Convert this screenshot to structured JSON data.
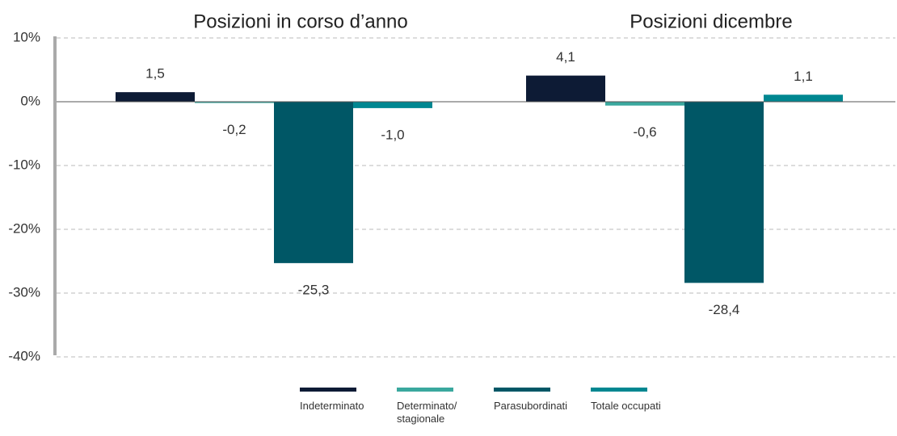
{
  "chart_data": {
    "type": "bar",
    "categories": [
      "Posizioni in corso d’anno",
      "Posizioni dicembre"
    ],
    "series": [
      {
        "name": "Indeterminato",
        "color": "#0d1b35",
        "values": [
          1.5,
          4.1
        ],
        "value_labels": [
          "1,5",
          "4,1"
        ]
      },
      {
        "name": "Determinato/ stagionale",
        "color": "#3aa89e",
        "values": [
          -0.2,
          -0.6
        ],
        "value_labels": [
          "-0,2",
          "-0,6"
        ]
      },
      {
        "name": "Parasubordinati",
        "color": "#005766",
        "values": [
          -25.3,
          -28.4
        ],
        "value_labels": [
          "-25,3",
          "-28,4"
        ]
      },
      {
        "name": "Totale occupati",
        "color": "#008791",
        "values": [
          -1.0,
          1.1
        ],
        "value_labels": [
          "-1,0",
          "1,1"
        ]
      }
    ],
    "ylim": [
      -40,
      10
    ],
    "yticks": [
      {
        "value": 10,
        "label": "10%"
      },
      {
        "value": 0,
        "label": "0%"
      },
      {
        "value": -10,
        "label": "-10%"
      },
      {
        "value": -20,
        "label": "-20%"
      },
      {
        "value": -30,
        "label": "-30%"
      },
      {
        "value": -40,
        "label": "-40%"
      }
    ],
    "grid": true
  }
}
